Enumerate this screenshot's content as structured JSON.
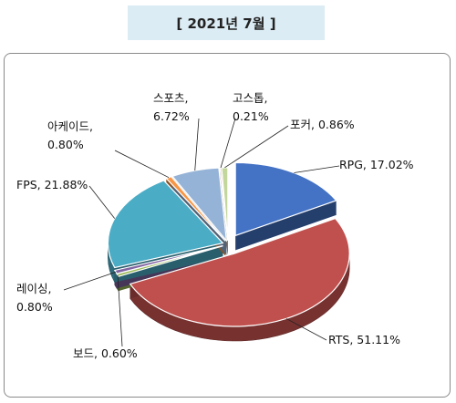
{
  "chart_data": {
    "type": "pie",
    "title": "[ 2021년 7월 ]",
    "slices": [
      {
        "name": "RPG",
        "value": 17.02,
        "label": "17.02%",
        "color": "#4472c4",
        "label_text": "RPG, 17.02%"
      },
      {
        "name": "RTS",
        "value": 51.11,
        "label": "51.11%",
        "color": "#c0504d",
        "label_text": "RTS, 51.11%"
      },
      {
        "name": "보드",
        "value": 0.6,
        "label": "0.60%",
        "color": "#9bbb59",
        "label_text": "보드, 0.60%"
      },
      {
        "name": "레이싱",
        "value": 0.8,
        "label": "0.80%",
        "color": "#8064a2",
        "label_text": [
          "레이싱,",
          "0.80%"
        ]
      },
      {
        "name": "FPS",
        "value": 21.88,
        "label": "21.88%",
        "color": "#4bacc6",
        "label_text": "FPS, 21.88%"
      },
      {
        "name": "아케이드",
        "value": 0.8,
        "label": "0.80%",
        "color": "#f79646",
        "label_text": [
          "아케이드,",
          "0.80%"
        ]
      },
      {
        "name": "스포츠",
        "value": 6.72,
        "label": "6.72%",
        "color": "#95b3d7",
        "label_text": [
          "스포츠,",
          "6.72%"
        ]
      },
      {
        "name": "고스톱",
        "value": 0.21,
        "label": "0.21%",
        "color": "#d99694",
        "label_text": [
          "고스톱,",
          "0.21%"
        ]
      },
      {
        "name": "포커",
        "value": 0.86,
        "label": "0.86%",
        "color": "#c3d69b",
        "label_text": "포커, 0.86%"
      }
    ],
    "legend": "none",
    "style": "3d-exploded"
  }
}
